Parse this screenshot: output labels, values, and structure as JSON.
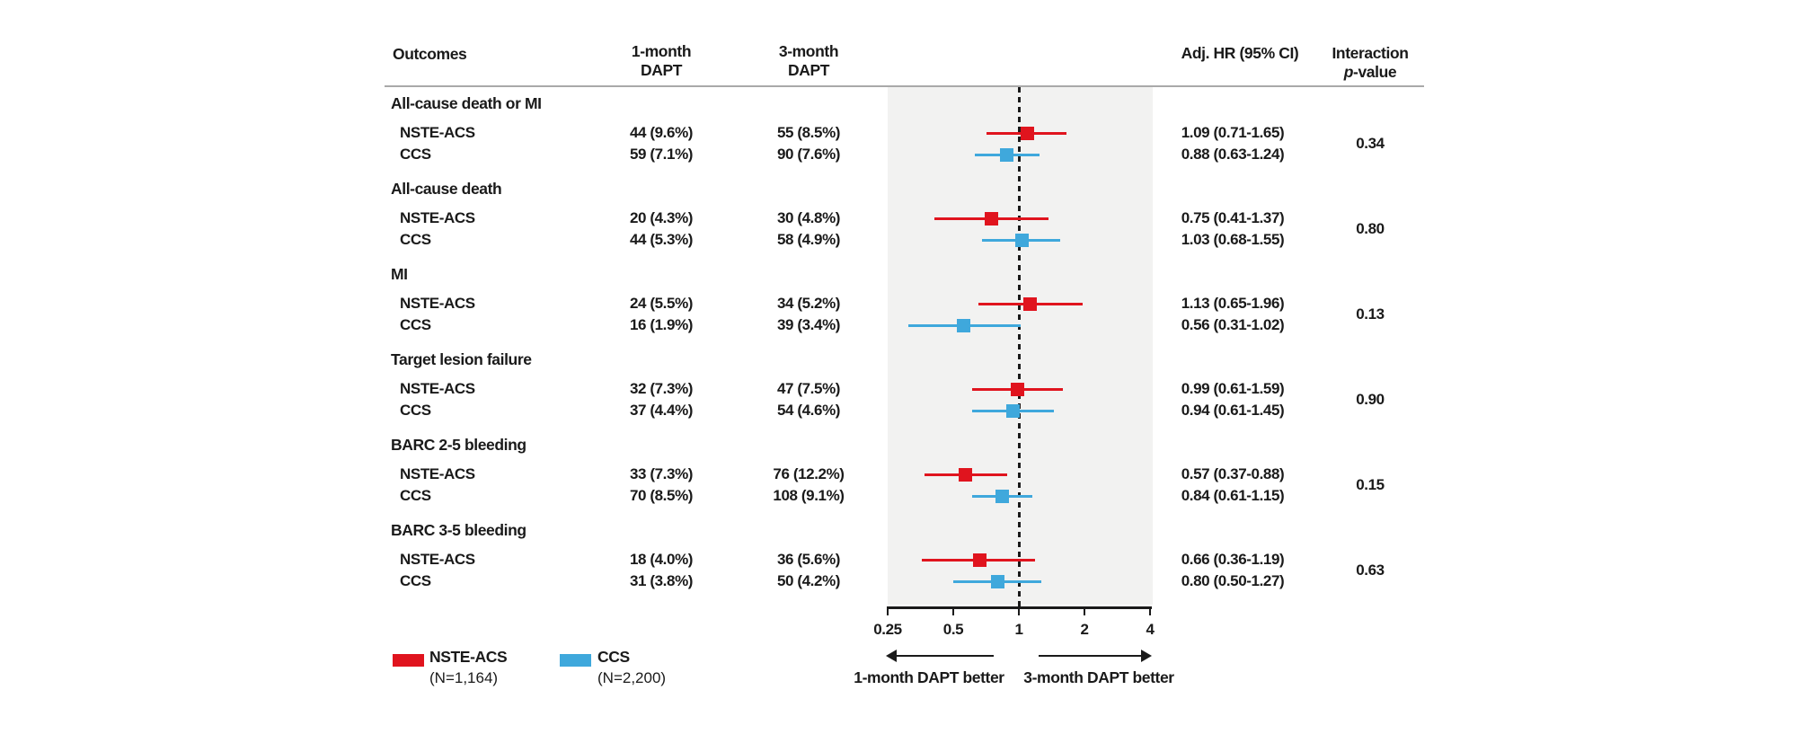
{
  "header": {
    "outcomes": "Outcomes",
    "col_1m_line1": "1-month",
    "col_1m_line2": "DAPT",
    "col_3m_line1": "3-month",
    "col_3m_line2": "DAPT",
    "adj_hr": "Adj. HR (95% CI)",
    "interaction_line1": "Interaction",
    "interaction_p": "p",
    "interaction_rest": "-value"
  },
  "chart_data": {
    "type": "forest",
    "x_axis": {
      "scale": "log2",
      "range": [
        0.25,
        4
      ],
      "ticks": [
        0.25,
        0.5,
        1,
        2,
        4
      ],
      "tick_labels": [
        "0.25",
        "0.5",
        "1",
        "2",
        "4"
      ],
      "reference_line": 1,
      "grid": false
    },
    "series_colors": {
      "NSTE-ACS": "#e0141e",
      "CCS": "#3fa8dc"
    },
    "direction_labels": {
      "left": "1-month DAPT better",
      "right": "3-month DAPT better"
    },
    "groups": [
      {
        "outcome": "All-cause death or MI",
        "interaction_p": "0.34",
        "rows": [
          {
            "subgroup": "NSTE-ACS",
            "events_1m": "44 (9.6%)",
            "events_3m": "55 (8.5%)",
            "hr": 1.09,
            "ci_low": 0.71,
            "ci_high": 1.65,
            "hr_label": "1.09 (0.71-1.65)"
          },
          {
            "subgroup": "CCS",
            "events_1m": "59 (7.1%)",
            "events_3m": "90 (7.6%)",
            "hr": 0.88,
            "ci_low": 0.63,
            "ci_high": 1.24,
            "hr_label": "0.88 (0.63-1.24)"
          }
        ]
      },
      {
        "outcome": "All-cause death",
        "interaction_p": "0.80",
        "rows": [
          {
            "subgroup": "NSTE-ACS",
            "events_1m": "20 (4.3%)",
            "events_3m": "30 (4.8%)",
            "hr": 0.75,
            "ci_low": 0.41,
            "ci_high": 1.37,
            "hr_label": "0.75 (0.41-1.37)"
          },
          {
            "subgroup": "CCS",
            "events_1m": "44 (5.3%)",
            "events_3m": "58 (4.9%)",
            "hr": 1.03,
            "ci_low": 0.68,
            "ci_high": 1.55,
            "hr_label": "1.03 (0.68-1.55)"
          }
        ]
      },
      {
        "outcome": "MI",
        "interaction_p": "0.13",
        "rows": [
          {
            "subgroup": "NSTE-ACS",
            "events_1m": "24 (5.5%)",
            "events_3m": "34 (5.2%)",
            "hr": 1.13,
            "ci_low": 0.65,
            "ci_high": 1.96,
            "hr_label": "1.13 (0.65-1.96)"
          },
          {
            "subgroup": "CCS",
            "events_1m": "16 (1.9%)",
            "events_3m": "39 (3.4%)",
            "hr": 0.56,
            "ci_low": 0.31,
            "ci_high": 1.02,
            "hr_label": "0.56 (0.31-1.02)"
          }
        ]
      },
      {
        "outcome": "Target lesion failure",
        "interaction_p": "0.90",
        "rows": [
          {
            "subgroup": "NSTE-ACS",
            "events_1m": "32 (7.3%)",
            "events_3m": "47 (7.5%)",
            "hr": 0.99,
            "ci_low": 0.61,
            "ci_high": 1.59,
            "hr_label": "0.99 (0.61-1.59)"
          },
          {
            "subgroup": "CCS",
            "events_1m": "37 (4.4%)",
            "events_3m": "54 (4.6%)",
            "hr": 0.94,
            "ci_low": 0.61,
            "ci_high": 1.45,
            "hr_label": "0.94 (0.61-1.45)"
          }
        ]
      },
      {
        "outcome": "BARC 2-5 bleeding",
        "interaction_p": "0.15",
        "rows": [
          {
            "subgroup": "NSTE-ACS",
            "events_1m": "33 (7.3%)",
            "events_3m": "76 (12.2%)",
            "hr": 0.57,
            "ci_low": 0.37,
            "ci_high": 0.88,
            "hr_label": "0.57 (0.37-0.88)"
          },
          {
            "subgroup": "CCS",
            "events_1m": "70 (8.5%)",
            "events_3m": "108 (9.1%)",
            "hr": 0.84,
            "ci_low": 0.61,
            "ci_high": 1.15,
            "hr_label": "0.84 (0.61-1.15)"
          }
        ]
      },
      {
        "outcome": "BARC 3-5 bleeding",
        "interaction_p": "0.63",
        "rows": [
          {
            "subgroup": "NSTE-ACS",
            "events_1m": "18 (4.0%)",
            "events_3m": "36 (5.6%)",
            "hr": 0.66,
            "ci_low": 0.36,
            "ci_high": 1.19,
            "hr_label": "0.66 (0.36-1.19)"
          },
          {
            "subgroup": "CCS",
            "events_1m": "31 (3.8%)",
            "events_3m": "50 (4.2%)",
            "hr": 0.8,
            "ci_low": 0.5,
            "ci_high": 1.27,
            "hr_label": "0.80 (0.50-1.27)"
          }
        ]
      }
    ]
  },
  "legend": {
    "items": [
      {
        "label": "NSTE-ACS",
        "sublabel": "(N=1,164)",
        "color": "#e0141e"
      },
      {
        "label": "CCS",
        "sublabel": "(N=2,200)",
        "color": "#3fa8dc"
      }
    ]
  }
}
